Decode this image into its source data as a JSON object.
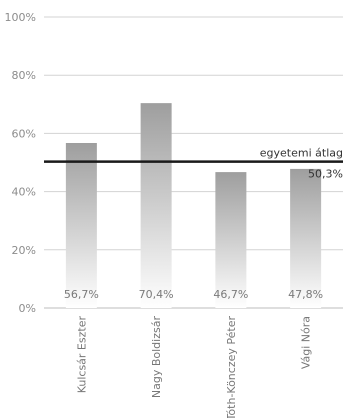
{
  "chart_data": {
    "type": "bar",
    "categories": [
      "Kulcsár Eszter",
      "Nagy Boldizsár",
      "Tóth-Könczey Péter",
      "Vági Nóra"
    ],
    "values": [
      56.7,
      70.4,
      46.7,
      47.8
    ],
    "value_labels": [
      "56,7%",
      "70,4%",
      "46,7%",
      "47,8%"
    ],
    "ylim": [
      0,
      100
    ],
    "y_ticks": [
      0,
      20,
      40,
      60,
      80,
      100
    ],
    "y_tick_labels": [
      "0%",
      "20%",
      "40%",
      "60%",
      "80%",
      "100%"
    ],
    "title": "",
    "xlabel": "",
    "ylabel": "",
    "grid": true,
    "reference_line": {
      "label": "egyetemi átlag",
      "value": 50.3,
      "value_label": "50,3%"
    },
    "colors": {
      "bar_top": "#9e9e9e",
      "bar_bottom": "#ffffff",
      "reference_line": "#1a1a1a",
      "grid": "#d3d3d3"
    }
  }
}
